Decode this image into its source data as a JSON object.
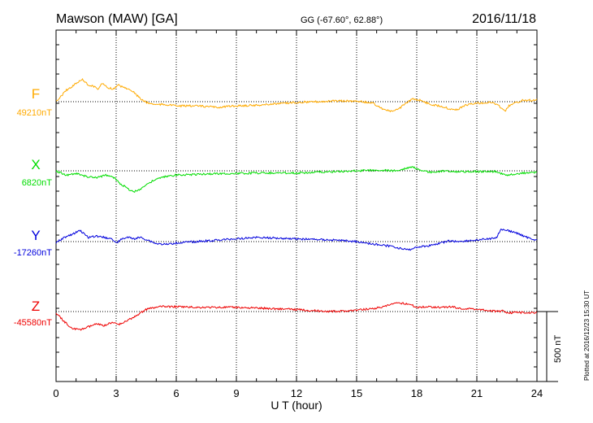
{
  "header": {
    "station": "Mawson (MAW)  [GA]",
    "coords": "GG (-67.60°,  62.88°)",
    "date": "2016/11/18"
  },
  "footer": {
    "xlabel": "U T (hour)",
    "plotted": "Plotted at 2016/12/23 15:30 UT"
  },
  "scale_bar": {
    "label": "500 nT",
    "value_nT": 500
  },
  "colors": {
    "F": "#ffaa00",
    "X": "#00dd00",
    "Y": "#0000dd",
    "Z": "#ee0000",
    "grid": "#000000"
  },
  "chart_data": {
    "type": "line",
    "x_unit": "hour UT",
    "xlim": [
      0,
      24
    ],
    "xticks": [
      0,
      3,
      6,
      9,
      12,
      15,
      18,
      21,
      24
    ],
    "grid": true,
    "series": [
      {
        "name": "F",
        "baseline_label": "49210nT",
        "baseline": 49210,
        "x": [
          0,
          0.5,
          1,
          1.3,
          1.6,
          1.9,
          2.1,
          2.3,
          2.6,
          2.9,
          3.1,
          3.4,
          3.7,
          4.0,
          4.3,
          4.6,
          5.0,
          5.5,
          6,
          7,
          8,
          9,
          10,
          11,
          12,
          13,
          14,
          15,
          15.8,
          16.3,
          16.7,
          17.0,
          17.4,
          17.8,
          18.2,
          18.7,
          19.2,
          19.6,
          20.0,
          20.4,
          21,
          21.8,
          22.2,
          22.4,
          22.6,
          22.9,
          23.3,
          23.7,
          24
        ],
        "values": [
          49210,
          49290,
          49340,
          49370,
          49330,
          49320,
          49300,
          49340,
          49310,
          49300,
          49330,
          49310,
          49300,
          49260,
          49220,
          49200,
          49190,
          49190,
          49180,
          49180,
          49170,
          49180,
          49185,
          49195,
          49205,
          49210,
          49215,
          49215,
          49200,
          49160,
          49140,
          49150,
          49190,
          49230,
          49220,
          49190,
          49180,
          49160,
          49150,
          49185,
          49200,
          49205,
          49170,
          49140,
          49180,
          49200,
          49220,
          49220,
          49225
        ]
      },
      {
        "name": "X",
        "baseline_label": "6820nT",
        "baseline": 6820,
        "x": [
          0,
          0.5,
          1,
          1.5,
          2.0,
          2.5,
          2.9,
          3.2,
          3.6,
          3.9,
          4.2,
          4.6,
          5.0,
          5.5,
          6,
          7,
          8,
          9,
          10,
          11,
          12,
          13,
          14,
          15,
          16,
          17,
          17.5,
          17.8,
          18.2,
          18.8,
          19.5,
          20,
          21,
          22,
          22.2,
          22.5,
          23,
          23.5,
          24
        ],
        "values": [
          6820,
          6790,
          6800,
          6780,
          6770,
          6790,
          6770,
          6730,
          6690,
          6670,
          6690,
          6730,
          6760,
          6780,
          6790,
          6795,
          6800,
          6800,
          6805,
          6805,
          6805,
          6810,
          6815,
          6820,
          6825,
          6820,
          6840,
          6850,
          6820,
          6810,
          6820,
          6815,
          6815,
          6815,
          6800,
          6790,
          6800,
          6805,
          6810
        ]
      },
      {
        "name": "Y",
        "baseline_label": "-17260nT",
        "baseline": -17260,
        "x": [
          0,
          0.4,
          0.8,
          1.2,
          1.6,
          2.0,
          2.4,
          2.8,
          3.0,
          3.3,
          3.6,
          3.9,
          4.2,
          4.6,
          5.0,
          5.5,
          6,
          7,
          8,
          9,
          10,
          11,
          12,
          13,
          14,
          15,
          16,
          16.8,
          17.2,
          17.6,
          18.0,
          18.6,
          19.2,
          19.6,
          20,
          21,
          21.6,
          22.0,
          22.2,
          22.5,
          23,
          23.5,
          24
        ],
        "values": [
          -17270,
          -17230,
          -17210,
          -17180,
          -17230,
          -17220,
          -17230,
          -17240,
          -17270,
          -17240,
          -17230,
          -17240,
          -17230,
          -17250,
          -17275,
          -17280,
          -17270,
          -17260,
          -17250,
          -17240,
          -17230,
          -17235,
          -17240,
          -17245,
          -17250,
          -17260,
          -17280,
          -17295,
          -17310,
          -17320,
          -17300,
          -17290,
          -17270,
          -17255,
          -17260,
          -17250,
          -17240,
          -17230,
          -17170,
          -17180,
          -17200,
          -17230,
          -17250
        ]
      },
      {
        "name": "Z",
        "baseline_label": "-45580nT",
        "baseline": -45580,
        "x": [
          0,
          0.4,
          0.8,
          1.2,
          1.6,
          2.0,
          2.4,
          2.8,
          3.2,
          3.6,
          3.9,
          4.2,
          4.5,
          4.8,
          5.2,
          6,
          7,
          8,
          9,
          10,
          11,
          12,
          13,
          14,
          15,
          16,
          16.4,
          16.8,
          17.2,
          17.6,
          18.0,
          18.6,
          19.2,
          19.8,
          20.2,
          20.8,
          21.5,
          22,
          22.3,
          22.6,
          23,
          23.5,
          24
        ],
        "values": [
          -45590,
          -45650,
          -45700,
          -45710,
          -45690,
          -45670,
          -45680,
          -45660,
          -45670,
          -45640,
          -45620,
          -45590,
          -45565,
          -45555,
          -45545,
          -45545,
          -45550,
          -45550,
          -45550,
          -45555,
          -45560,
          -45565,
          -45575,
          -45580,
          -45570,
          -45555,
          -45545,
          -45525,
          -45520,
          -45525,
          -45550,
          -45545,
          -45550,
          -45545,
          -45560,
          -45560,
          -45570,
          -45580,
          -45575,
          -45590,
          -45585,
          -45590,
          -45585
        ]
      }
    ]
  }
}
